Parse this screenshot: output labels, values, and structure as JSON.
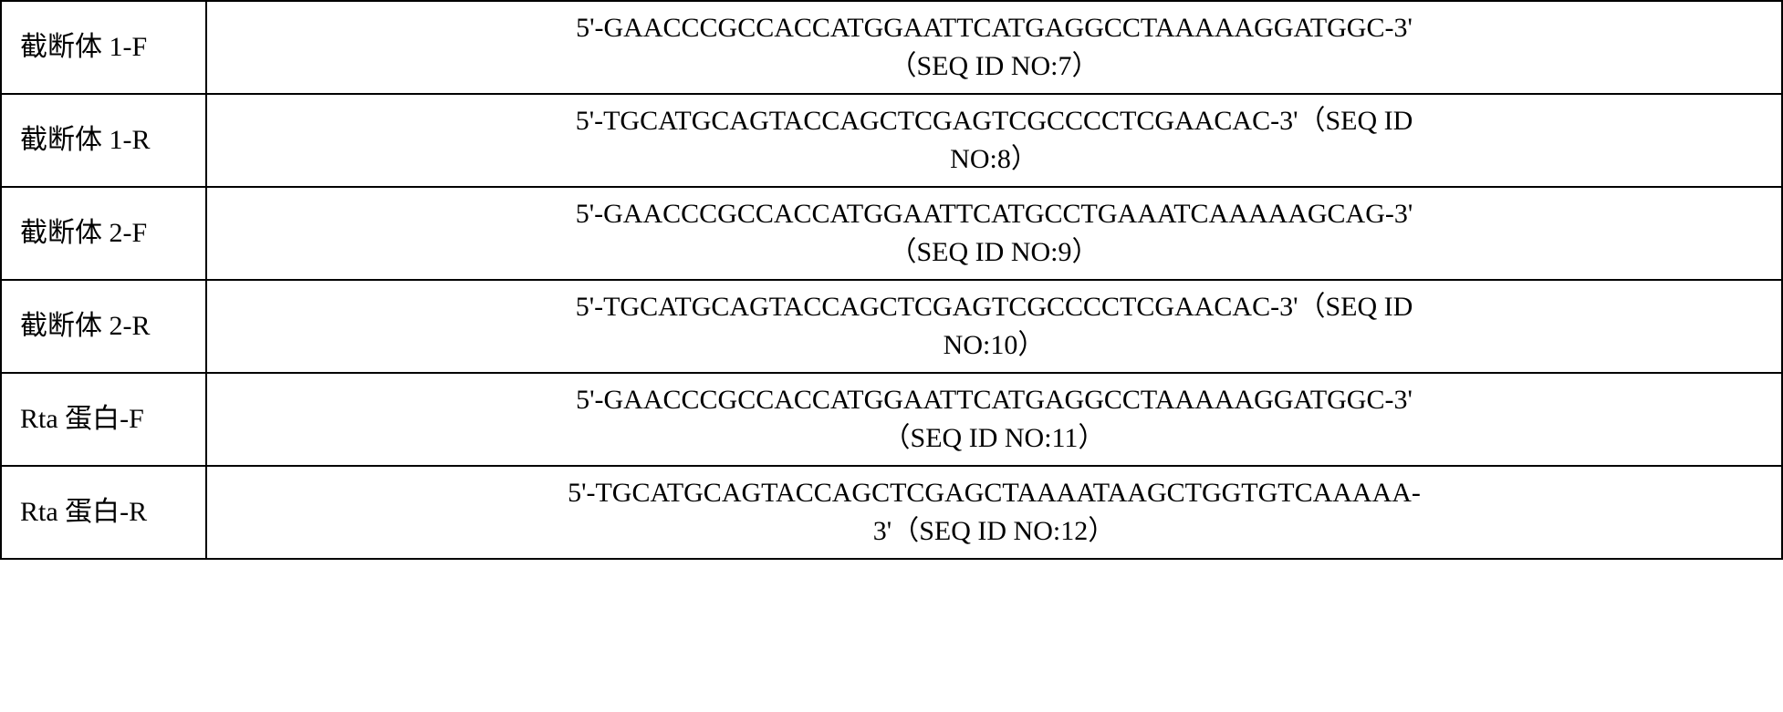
{
  "table": {
    "rows": [
      {
        "label": "截断体 1-F",
        "sequence_line1": "5'-GAACCCGCCACCATGGAATTCATGAGGCCTAAAAAGGATGGC-3'",
        "sequence_line2": "（SEQ ID NO:7）"
      },
      {
        "label": "截断体 1-R",
        "sequence_line1": "5'-TGCATGCAGTACCAGCTCGAGTCGCCCCTCGAACAC-3'（SEQ ID",
        "sequence_line2": "NO:8）"
      },
      {
        "label": "截断体 2-F",
        "sequence_line1": "5'-GAACCCGCCACCATGGAATTCATGCCTGAAATCAAAAAGCAG-3'",
        "sequence_line2": "（SEQ ID NO:9）"
      },
      {
        "label": "截断体 2-R",
        "sequence_line1": "5'-TGCATGCAGTACCAGCTCGAGTCGCCCCTCGAACAC-3'（SEQ ID",
        "sequence_line2": "NO:10）"
      },
      {
        "label": "Rta 蛋白-F",
        "sequence_line1": "5'-GAACCCGCCACCATGGAATTCATGAGGCCTAAAAAGGATGGC-3'",
        "sequence_line2": "（SEQ ID NO:11）"
      },
      {
        "label": "Rta 蛋白-R",
        "sequence_line1": "5'-TGCATGCAGTACCAGCTCGAGCTAAAATAAGCTGGTGTCAAAAA-",
        "sequence_line2": "3'（SEQ ID NO:12）"
      }
    ],
    "styling": {
      "border_color": "#000000",
      "border_width": 2,
      "background_color": "#ffffff",
      "text_color": "#000000",
      "font_size": 30,
      "label_column_width": 225,
      "font_family": "SimSun"
    }
  }
}
